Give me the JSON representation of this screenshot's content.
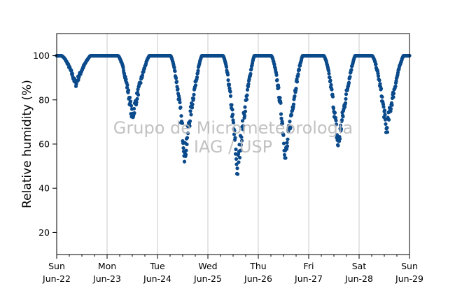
{
  "chart_data": {
    "type": "scatter",
    "title": "",
    "ylabel": "Relative humidity (%)",
    "xlabel": "",
    "xlim": [
      "2025-06-22T00:00",
      "2025-06-29T00:00"
    ],
    "ylim": [
      10,
      110
    ],
    "yticks": [
      20,
      40,
      60,
      80,
      100
    ],
    "xticks": [
      {
        "day": "Sun",
        "date": "Jun-22"
      },
      {
        "day": "Mon",
        "date": "Jun-23"
      },
      {
        "day": "Tue",
        "date": "Jun-24"
      },
      {
        "day": "Wed",
        "date": "Jun-25"
      },
      {
        "day": "Thu",
        "date": "Jun-26"
      },
      {
        "day": "Fri",
        "date": "Jun-27"
      },
      {
        "day": "Sat",
        "date": "Jun-28"
      },
      {
        "day": "Sun",
        "date": "Jun-29"
      }
    ],
    "grid": "x-major",
    "marker_color": "#0b4a8b",
    "daily_minimum_humidity": [
      {
        "time": "2025-06-22T09:00",
        "value": 87
      },
      {
        "time": "2025-06-23T12:00",
        "value": 72
      },
      {
        "time": "2025-06-24T13:00",
        "value": 55
      },
      {
        "time": "2025-06-25T14:00",
        "value": 48
      },
      {
        "time": "2025-06-26T13:00",
        "value": 54
      },
      {
        "time": "2025-06-27T14:00",
        "value": 59
      },
      {
        "time": "2025-06-28T13:00",
        "value": 66
      }
    ],
    "watermark": [
      "Grupo de Micrometeorologia",
      "IAG / USP"
    ]
  }
}
